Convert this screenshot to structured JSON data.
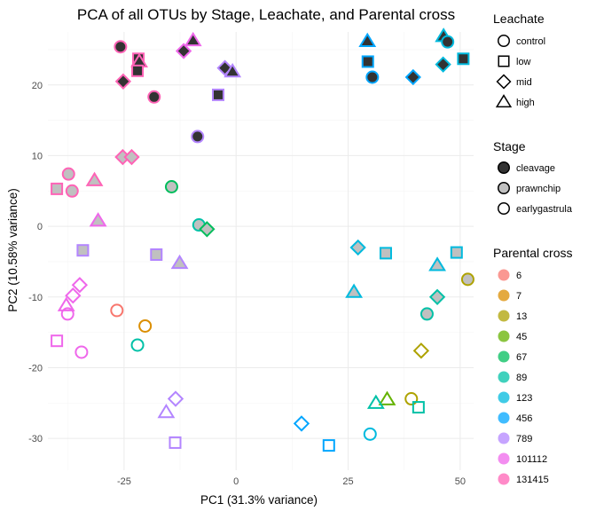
{
  "chart_data": {
    "type": "scatter",
    "title": "PCA of all OTUs by Stage, Leachate, and Parental cross",
    "xlabel": "PC1 (31.3% variance)",
    "ylabel": "PC2 (10.58% variance)",
    "xlim": [
      -42,
      53
    ],
    "ylim": [
      -34.5,
      27.5
    ],
    "xticks": [
      -25,
      0,
      25,
      50
    ],
    "yticks": [
      -30,
      -20,
      -10,
      0,
      10,
      20
    ],
    "grid": true,
    "legends": [
      {
        "title": "Leachate",
        "aesthetic": "shape",
        "entries": [
          {
            "label": "control",
            "shape": "circle"
          },
          {
            "label": "low",
            "shape": "square"
          },
          {
            "label": "mid",
            "shape": "diamond"
          },
          {
            "label": "high",
            "shape": "triangle"
          }
        ]
      },
      {
        "title": "Stage",
        "aesthetic": "fill",
        "entries": [
          {
            "label": "cleavage",
            "fill": "#333333"
          },
          {
            "label": "prawnchip",
            "fill": "#c0c0c0"
          },
          {
            "label": "earlygastrula",
            "fill": "none"
          }
        ]
      },
      {
        "title": "Parental cross",
        "aesthetic": "color",
        "entries": [
          {
            "label": "6",
            "color": "#F8766D"
          },
          {
            "label": "7",
            "color": "#DB8E00"
          },
          {
            "label": "13",
            "color": "#AEA200"
          },
          {
            "label": "45",
            "color": "#64B200"
          },
          {
            "label": "67",
            "color": "#00BD5C"
          },
          {
            "label": "89",
            "color": "#00C1A7"
          },
          {
            "label": "123",
            "color": "#00BADE"
          },
          {
            "label": "456",
            "color": "#00A6FF"
          },
          {
            "label": "789",
            "color": "#B385FF"
          },
          {
            "label": "101112",
            "color": "#EF67EB"
          },
          {
            "label": "131415",
            "color": "#FF63B6"
          }
        ]
      }
    ],
    "points": [
      {
        "x": -25.8,
        "y": 25.4,
        "leachate": "control",
        "stage": "cleavage",
        "cross": "131415"
      },
      {
        "x": -21.8,
        "y": 23.7,
        "leachate": "low",
        "stage": "cleavage",
        "cross": "131415"
      },
      {
        "x": -21.6,
        "y": 23.3,
        "leachate": "high",
        "stage": "cleavage",
        "cross": "131415"
      },
      {
        "x": -22.0,
        "y": 22.0,
        "leachate": "low",
        "stage": "cleavage",
        "cross": "131415"
      },
      {
        "x": -25.2,
        "y": 20.5,
        "leachate": "mid",
        "stage": "cleavage",
        "cross": "131415"
      },
      {
        "x": -18.3,
        "y": 18.3,
        "leachate": "control",
        "stage": "cleavage",
        "cross": "131415"
      },
      {
        "x": -11.7,
        "y": 24.8,
        "leachate": "mid",
        "stage": "cleavage",
        "cross": "101112"
      },
      {
        "x": -9.6,
        "y": 26.3,
        "leachate": "high",
        "stage": "cleavage",
        "cross": "101112"
      },
      {
        "x": -2.5,
        "y": 22.4,
        "leachate": "mid",
        "stage": "cleavage",
        "cross": "789"
      },
      {
        "x": -0.8,
        "y": 21.9,
        "leachate": "high",
        "stage": "cleavage",
        "cross": "789"
      },
      {
        "x": -4.0,
        "y": 18.6,
        "leachate": "low",
        "stage": "cleavage",
        "cross": "789"
      },
      {
        "x": -8.6,
        "y": 12.7,
        "leachate": "control",
        "stage": "cleavage",
        "cross": "789"
      },
      {
        "x": 29.3,
        "y": 26.2,
        "leachate": "high",
        "stage": "cleavage",
        "cross": "456"
      },
      {
        "x": 29.4,
        "y": 23.3,
        "leachate": "low",
        "stage": "cleavage",
        "cross": "456"
      },
      {
        "x": 30.4,
        "y": 21.1,
        "leachate": "control",
        "stage": "cleavage",
        "cross": "456"
      },
      {
        "x": 39.5,
        "y": 21.1,
        "leachate": "mid",
        "stage": "cleavage",
        "cross": "456"
      },
      {
        "x": 46.3,
        "y": 26.9,
        "leachate": "high",
        "stage": "cleavage",
        "cross": "123"
      },
      {
        "x": 47.2,
        "y": 26.1,
        "leachate": "control",
        "stage": "cleavage",
        "cross": "123"
      },
      {
        "x": 50.7,
        "y": 23.7,
        "leachate": "low",
        "stage": "cleavage",
        "cross": "123"
      },
      {
        "x": 46.2,
        "y": 22.9,
        "leachate": "mid",
        "stage": "cleavage",
        "cross": "123"
      },
      {
        "x": -25.3,
        "y": 9.8,
        "leachate": "mid",
        "stage": "prawnchip",
        "cross": "131415"
      },
      {
        "x": -23.3,
        "y": 9.8,
        "leachate": "mid",
        "stage": "prawnchip",
        "cross": "131415"
      },
      {
        "x": -37.4,
        "y": 7.4,
        "leachate": "control",
        "stage": "prawnchip",
        "cross": "131415"
      },
      {
        "x": -40.0,
        "y": 5.3,
        "leachate": "low",
        "stage": "prawnchip",
        "cross": "131415"
      },
      {
        "x": -36.6,
        "y": 5.0,
        "leachate": "control",
        "stage": "prawnchip",
        "cross": "131415"
      },
      {
        "x": -31.6,
        "y": 6.5,
        "leachate": "high",
        "stage": "prawnchip",
        "cross": "131415"
      },
      {
        "x": -30.8,
        "y": 0.8,
        "leachate": "high",
        "stage": "prawnchip",
        "cross": "101112"
      },
      {
        "x": -14.4,
        "y": 5.6,
        "leachate": "control",
        "stage": "prawnchip",
        "cross": "67"
      },
      {
        "x": -8.3,
        "y": 0.2,
        "leachate": "control",
        "stage": "prawnchip",
        "cross": "89"
      },
      {
        "x": -6.5,
        "y": -0.4,
        "leachate": "mid",
        "stage": "prawnchip",
        "cross": "67"
      },
      {
        "x": -34.2,
        "y": -3.4,
        "leachate": "low",
        "stage": "prawnchip",
        "cross": "789"
      },
      {
        "x": -17.8,
        "y": -4.0,
        "leachate": "low",
        "stage": "prawnchip",
        "cross": "789"
      },
      {
        "x": -12.6,
        "y": -5.2,
        "leachate": "high",
        "stage": "prawnchip",
        "cross": "789"
      },
      {
        "x": 27.2,
        "y": -3.0,
        "leachate": "mid",
        "stage": "prawnchip",
        "cross": "123"
      },
      {
        "x": 33.4,
        "y": -3.8,
        "leachate": "low",
        "stage": "prawnchip",
        "cross": "123"
      },
      {
        "x": 44.9,
        "y": -5.5,
        "leachate": "high",
        "stage": "prawnchip",
        "cross": "123"
      },
      {
        "x": 49.2,
        "y": -3.7,
        "leachate": "low",
        "stage": "prawnchip",
        "cross": "123"
      },
      {
        "x": 51.7,
        "y": -7.5,
        "leachate": "control",
        "stage": "prawnchip",
        "cross": "13"
      },
      {
        "x": 26.3,
        "y": -9.3,
        "leachate": "high",
        "stage": "prawnchip",
        "cross": "123"
      },
      {
        "x": 44.9,
        "y": -10.0,
        "leachate": "mid",
        "stage": "prawnchip",
        "cross": "89"
      },
      {
        "x": 42.6,
        "y": -12.4,
        "leachate": "control",
        "stage": "prawnchip",
        "cross": "89"
      },
      {
        "x": -34.9,
        "y": -8.3,
        "leachate": "mid",
        "stage": "earlygastrula",
        "cross": "101112"
      },
      {
        "x": -36.4,
        "y": -9.8,
        "leachate": "mid",
        "stage": "earlygastrula",
        "cross": "101112"
      },
      {
        "x": -37.9,
        "y": -11.2,
        "leachate": "high",
        "stage": "earlygastrula",
        "cross": "101112"
      },
      {
        "x": -37.6,
        "y": -12.4,
        "leachate": "control",
        "stage": "earlygastrula",
        "cross": "101112"
      },
      {
        "x": -26.6,
        "y": -11.9,
        "leachate": "control",
        "stage": "earlygastrula",
        "cross": "6"
      },
      {
        "x": -20.3,
        "y": -14.1,
        "leachate": "control",
        "stage": "earlygastrula",
        "cross": "7"
      },
      {
        "x": -40.0,
        "y": -16.2,
        "leachate": "low",
        "stage": "earlygastrula",
        "cross": "101112"
      },
      {
        "x": -34.5,
        "y": -17.8,
        "leachate": "control",
        "stage": "earlygastrula",
        "cross": "101112"
      },
      {
        "x": -22.0,
        "y": -16.8,
        "leachate": "control",
        "stage": "earlygastrula",
        "cross": "89"
      },
      {
        "x": -13.5,
        "y": -24.4,
        "leachate": "mid",
        "stage": "earlygastrula",
        "cross": "789"
      },
      {
        "x": -15.6,
        "y": -26.3,
        "leachate": "high",
        "stage": "earlygastrula",
        "cross": "789"
      },
      {
        "x": -13.6,
        "y": -30.6,
        "leachate": "low",
        "stage": "earlygastrula",
        "cross": "789"
      },
      {
        "x": 41.3,
        "y": -17.6,
        "leachate": "mid",
        "stage": "earlygastrula",
        "cross": "13"
      },
      {
        "x": 33.7,
        "y": -24.5,
        "leachate": "high",
        "stage": "earlygastrula",
        "cross": "45"
      },
      {
        "x": 39.1,
        "y": -24.4,
        "leachate": "control",
        "stage": "earlygastrula",
        "cross": "13"
      },
      {
        "x": 31.2,
        "y": -25.0,
        "leachate": "high",
        "stage": "earlygastrula",
        "cross": "89"
      },
      {
        "x": 40.7,
        "y": -25.6,
        "leachate": "low",
        "stage": "earlygastrula",
        "cross": "89"
      },
      {
        "x": 14.6,
        "y": -27.9,
        "leachate": "mid",
        "stage": "earlygastrula",
        "cross": "456"
      },
      {
        "x": 20.7,
        "y": -31.0,
        "leachate": "low",
        "stage": "earlygastrula",
        "cross": "456"
      },
      {
        "x": 29.9,
        "y": -29.4,
        "leachate": "control",
        "stage": "earlygastrula",
        "cross": "123"
      }
    ]
  }
}
